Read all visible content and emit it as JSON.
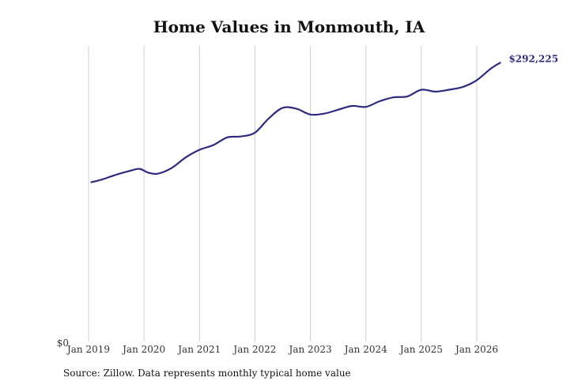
{
  "chart_data": {
    "type": "line",
    "title": "Home Values in Monmouth, IA",
    "xlabel": "",
    "ylabel": "",
    "x_tick_labels": [
      "Jan 2019",
      "Jan 2020",
      "Jan 2021",
      "Jan 2022",
      "Jan 2023",
      "Jan 2024",
      "Jan 2025",
      "Jan 2026"
    ],
    "y_tick_labels": [
      "$0"
    ],
    "xlim": [
      2019.0,
      2026.75
    ],
    "ylim": [
      0,
      310000
    ],
    "grid": "vertical",
    "line_color": "#2e2a7d",
    "end_label": "$292,225",
    "series": [
      {
        "x": [
          2019.05,
          2019.25,
          2019.5,
          2019.75,
          2019.92,
          2020.08,
          2020.25,
          2020.5,
          2020.75,
          2021.0,
          2021.25,
          2021.5,
          2021.75,
          2022.0,
          2022.25,
          2022.5,
          2022.75,
          2023.0,
          2023.25,
          2023.5,
          2023.75,
          2024.0,
          2024.25,
          2024.5,
          2024.75,
          2025.0,
          2025.25,
          2025.5,
          2025.75,
          2026.0,
          2026.25,
          2026.42
        ],
        "values": [
          167000,
          170000,
          175000,
          179000,
          181000,
          177000,
          176000,
          182000,
          193000,
          201000,
          206000,
          214000,
          215000,
          219000,
          234000,
          245000,
          244000,
          238000,
          239000,
          243000,
          247000,
          246000,
          252000,
          256000,
          257000,
          264000,
          262000,
          264000,
          267000,
          274000,
          286000,
          292225
        ]
      }
    ]
  },
  "source": "Source: Zillow. Data represents monthly typical home value"
}
